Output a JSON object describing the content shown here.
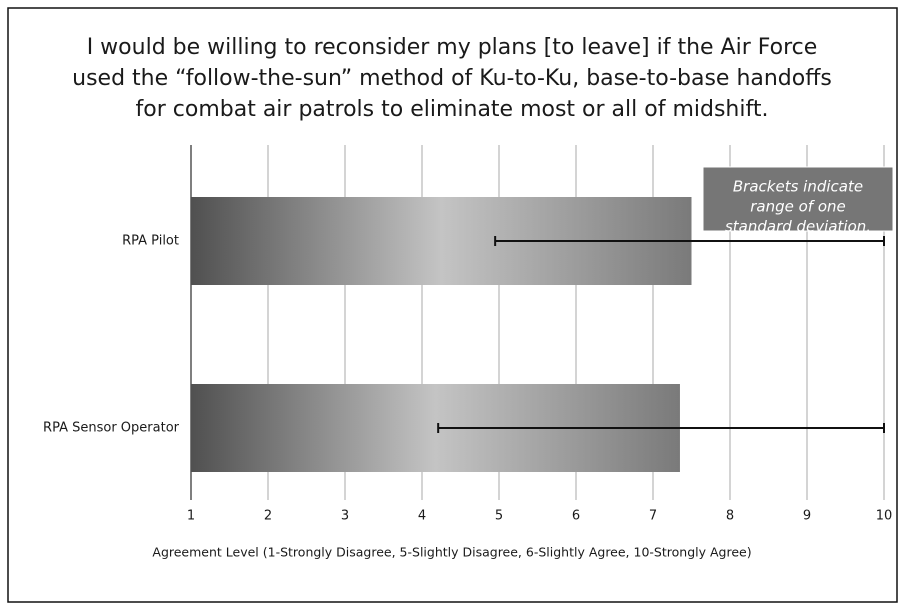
{
  "chart_data": {
    "type": "bar",
    "orientation": "horizontal",
    "title": [
      "I would be willing to reconsider my plans [to leave] if the Air Force",
      "used the “follow-the-sun” method of Ku-to-Ku, base-to-base handoffs",
      "for combat air patrols to eliminate most or all of midshift."
    ],
    "x_label": "Agreement Level (1-Strongly Disagree, 5-Slightly Disagree, 6-Slightly Agree, 10-Strongly Agree)",
    "annotation": [
      "Brackets indicate",
      "range of one",
      "standard deviation."
    ],
    "categories": [
      "RPA Pilot",
      "RPA Sensor Operator"
    ],
    "values": [
      7.5,
      7.35
    ],
    "errors": [
      2.55,
      3.14
    ],
    "xlim": [
      1,
      10
    ],
    "xticks": [
      1,
      2,
      3,
      4,
      5,
      6,
      7,
      8,
      9,
      10
    ],
    "grid": true
  }
}
